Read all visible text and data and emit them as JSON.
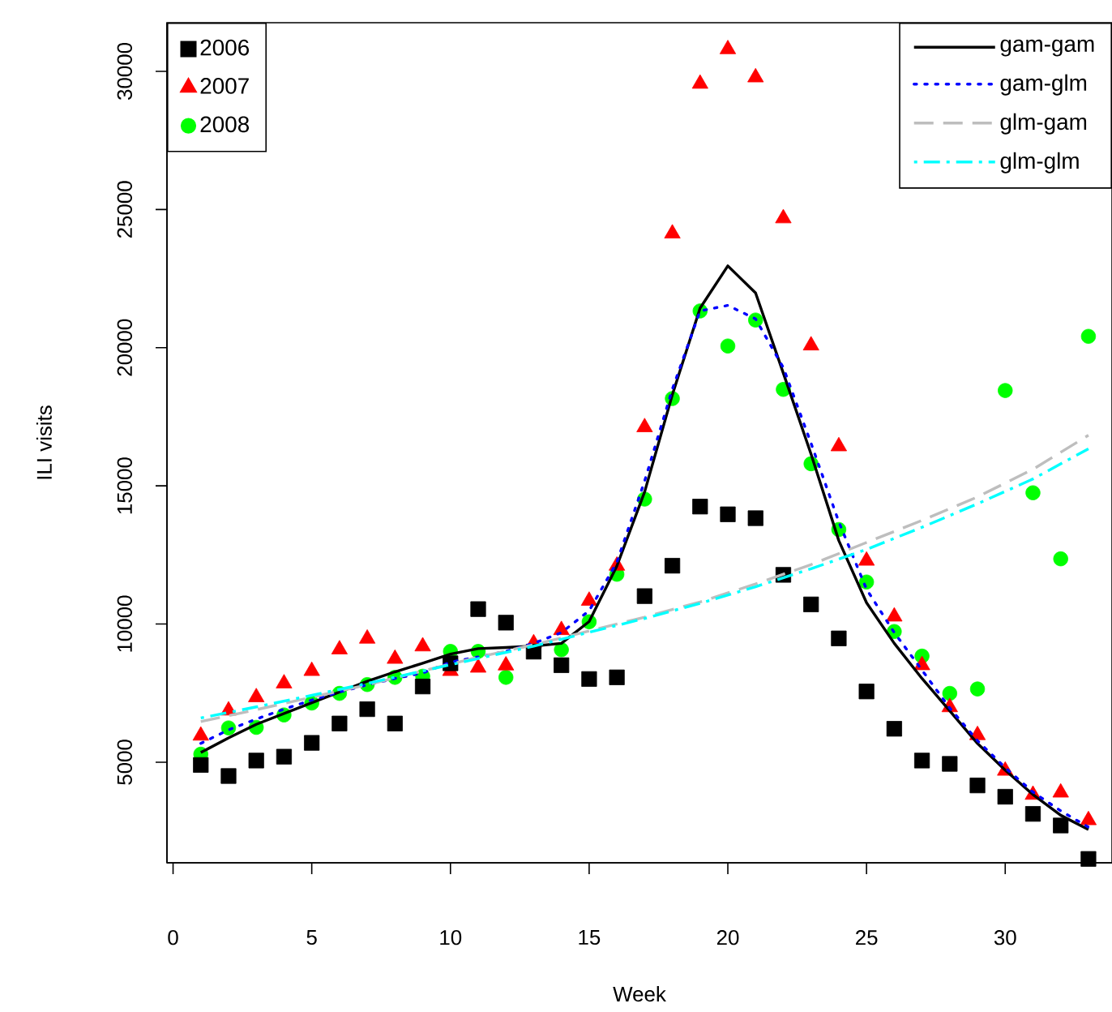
{
  "chart_data": {
    "type": "scatter",
    "xlabel": "Week",
    "ylabel": "ILI visits",
    "xlim": [
      -0.22,
      33.85
    ],
    "ylim": [
      1360,
      31760
    ],
    "xticks": [
      0,
      5,
      10,
      15,
      20,
      25,
      30
    ],
    "yticks": [
      5000,
      10000,
      15000,
      20000,
      25000,
      30000
    ],
    "legend": "top left",
    "x": [
      1,
      2,
      3,
      4,
      5,
      6,
      7,
      8,
      9,
      10,
      11,
      12,
      13,
      14,
      15,
      16,
      17,
      18,
      19,
      20,
      21,
      22,
      23,
      24,
      25,
      26,
      27,
      28,
      29,
      30,
      31,
      32,
      33
    ],
    "series": [
      {
        "name": "2006",
        "marker": "square",
        "color": "#000000",
        "values": [
          4900,
          4500,
          5060,
          5200,
          5700,
          6400,
          6920,
          6400,
          7740,
          8580,
          10540,
          10050,
          9000,
          8510,
          8010,
          8070,
          11010,
          12110,
          14250,
          13970,
          13830,
          11780,
          10710,
          9480,
          7560,
          6210,
          5060,
          4940,
          4160,
          3750,
          3130,
          2710,
          1500
        ]
      },
      {
        "name": "2007",
        "marker": "triangle",
        "color": "#ff0000",
        "values": [
          5960,
          6870,
          7350,
          7850,
          8300,
          9080,
          9470,
          8740,
          9190,
          8300,
          8420,
          8500,
          9300,
          9780,
          10840,
          12110,
          17120,
          24130,
          29550,
          30800,
          29780,
          24680,
          20080,
          16430,
          12290,
          10270,
          8510,
          6990,
          5980,
          4690,
          3820,
          3900,
          2900
        ]
      },
      {
        "name": "2008",
        "marker": "circle",
        "color": "#00ff00",
        "values": [
          5290,
          6240,
          6260,
          6710,
          7140,
          7490,
          7810,
          8070,
          8110,
          9010,
          9010,
          8070,
          null,
          9070,
          10080,
          11800,
          14520,
          18160,
          21330,
          20060,
          21000,
          18490,
          15800,
          13420,
          11520,
          9730,
          8840,
          7490,
          7650,
          18450,
          14750,
          12360,
          20410
        ]
      },
      {
        "name": "gam-gam",
        "type": "line",
        "line_style": "solid",
        "color": "#000000",
        "values": [
          5350,
          5880,
          6370,
          6760,
          7150,
          7540,
          7930,
          8270,
          8580,
          8910,
          9110,
          9150,
          9200,
          9300,
          10090,
          12100,
          14780,
          18300,
          21430,
          22960,
          21980,
          19080,
          16150,
          13020,
          10770,
          9300,
          8030,
          6860,
          5680,
          4710,
          3830,
          3080,
          2560
        ]
      },
      {
        "name": "gam-glm",
        "type": "line",
        "line_style": "dotted",
        "color": "#0000ff",
        "values": [
          5680,
          6170,
          6560,
          6920,
          7250,
          7540,
          7800,
          8030,
          8230,
          8620,
          8810,
          9010,
          9300,
          9690,
          10480,
          12240,
          15170,
          18500,
          21330,
          21530,
          21040,
          19280,
          16540,
          13700,
          11260,
          9690,
          8330,
          6960,
          5780,
          4800,
          3920,
          3240,
          2650
        ]
      },
      {
        "name": "glm-gam",
        "type": "line",
        "line_style": "dashed",
        "color": "#bebebe",
        "x": [
          1,
          3,
          5,
          7,
          9,
          11,
          13,
          15,
          17,
          19,
          21,
          23,
          25,
          27,
          29,
          31,
          33
        ],
        "values": [
          6470,
          6900,
          7350,
          7800,
          8300,
          8800,
          9250,
          9750,
          10250,
          10800,
          11450,
          12150,
          12950,
          13750,
          14600,
          15600,
          16830
        ]
      },
      {
        "name": "glm-glm",
        "type": "line",
        "line_style": "dashdot",
        "color": "#00ffff",
        "x": [
          1,
          3,
          5,
          7,
          9,
          11,
          13,
          15,
          17,
          19,
          21,
          23,
          25,
          27,
          29,
          31,
          33
        ],
        "values": [
          6600,
          7000,
          7420,
          7850,
          8300,
          8750,
          9200,
          9700,
          10200,
          10750,
          11350,
          12000,
          12700,
          13500,
          14350,
          15250,
          16340
        ]
      }
    ]
  }
}
